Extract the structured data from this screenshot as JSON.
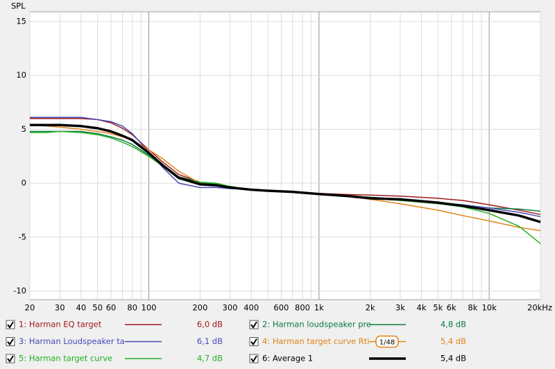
{
  "chart_data": {
    "type": "line",
    "ylabel": "SPL",
    "xscale": "log",
    "grid": true,
    "xlim": [
      20,
      20000
    ],
    "ylim": [
      -10.8,
      15.9
    ],
    "yticks": [
      -10,
      -5,
      0,
      5,
      10,
      15
    ],
    "xticks": [
      20,
      30,
      40,
      50,
      60,
      80,
      100,
      200,
      300,
      400,
      600,
      800,
      {
        "value": 1000,
        "label": "1k"
      },
      {
        "value": 2000,
        "label": "2k"
      },
      {
        "value": 3000,
        "label": "3k"
      },
      {
        "value": 4000,
        "label": "4k"
      },
      {
        "value": 5000,
        "label": "5k"
      },
      {
        "value": 6000,
        "label": "6k"
      },
      {
        "value": 8000,
        "label": "8k"
      },
      {
        "value": 10000,
        "label": "10k"
      },
      {
        "value": 20000,
        "label": "20kHz"
      }
    ],
    "xminorticks": [
      70,
      90,
      500,
      700,
      900,
      7000,
      9000
    ],
    "x": [
      20,
      25,
      30,
      40,
      50,
      60,
      70,
      80,
      100,
      120,
      150,
      200,
      250,
      300,
      400,
      500,
      700,
      1000,
      1500,
      2000,
      3000,
      5000,
      7000,
      10000,
      15000,
      20000
    ],
    "series": [
      {
        "name": "1: Harman EQ target",
        "color": "#a01818",
        "legend_value": "6,0 dB",
        "width": 1.5,
        "values": [
          6.0,
          6.0,
          6.0,
          6.0,
          5.9,
          5.6,
          5.1,
          4.5,
          3.1,
          2.0,
          0.8,
          0.1,
          -0.2,
          -0.4,
          -0.6,
          -0.7,
          -0.8,
          -0.95,
          -1.05,
          -1.1,
          -1.2,
          -1.4,
          -1.6,
          -2.0,
          -2.5,
          -2.9
        ]
      },
      {
        "name": "2: Harman loudspeaker pre",
        "color": "#0b7a3e",
        "legend_value": "4,8 dB",
        "width": 1.5,
        "values": [
          4.8,
          4.8,
          4.8,
          4.8,
          4.6,
          4.3,
          4.0,
          3.6,
          2.6,
          1.7,
          0.6,
          0.1,
          -0.1,
          -0.3,
          -0.6,
          -0.7,
          -0.8,
          -1.0,
          -1.2,
          -1.4,
          -1.6,
          -1.8,
          -2.0,
          -2.3,
          -2.4,
          -2.6
        ]
      },
      {
        "name": "3: Harman Loudspeaker ta",
        "color": "#4848b8",
        "legend_value": "6,1 dB",
        "width": 1.5,
        "values": [
          6.1,
          6.1,
          6.1,
          6.1,
          5.9,
          5.7,
          5.3,
          4.6,
          2.9,
          1.5,
          0.0,
          -0.4,
          -0.4,
          -0.5,
          -0.6,
          -0.7,
          -0.8,
          -1.0,
          -1.2,
          -1.3,
          -1.5,
          -1.8,
          -2.0,
          -2.3,
          -2.7,
          -3.1
        ]
      },
      {
        "name": "4: Harman target curve Rti",
        "color": "#e08418",
        "legend_value": "5,4 dB",
        "smoothing": "1/48",
        "width": 1.5,
        "values": [
          5.4,
          5.3,
          5.2,
          5.0,
          4.8,
          4.6,
          4.3,
          4.0,
          3.1,
          2.3,
          1.1,
          0.0,
          -0.2,
          -0.4,
          -0.6,
          -0.7,
          -0.8,
          -1.0,
          -1.2,
          -1.5,
          -1.9,
          -2.5,
          -3.0,
          -3.5,
          -4.1,
          -4.4
        ]
      },
      {
        "name": "5: Harman target curve",
        "color": "#22b022",
        "legend_value": "4,7 dB",
        "width": 1.5,
        "values": [
          4.7,
          4.7,
          4.8,
          4.7,
          4.5,
          4.2,
          3.8,
          3.4,
          2.5,
          1.6,
          0.4,
          0.1,
          0.0,
          -0.3,
          -0.6,
          -0.7,
          -0.8,
          -1.0,
          -1.2,
          -1.3,
          -1.6,
          -1.9,
          -2.2,
          -2.8,
          -4.0,
          -5.6
        ]
      },
      {
        "name": "6: Average 1",
        "color": "#000000",
        "legend_value": "5,4 dB",
        "width": 3.5,
        "values": [
          5.4,
          5.4,
          5.4,
          5.3,
          5.1,
          4.8,
          4.4,
          4.0,
          2.8,
          1.7,
          0.5,
          -0.1,
          -0.2,
          -0.4,
          -0.6,
          -0.7,
          -0.8,
          -1.0,
          -1.2,
          -1.4,
          -1.5,
          -1.8,
          -2.1,
          -2.5,
          -3.0,
          -3.6
        ]
      }
    ]
  }
}
